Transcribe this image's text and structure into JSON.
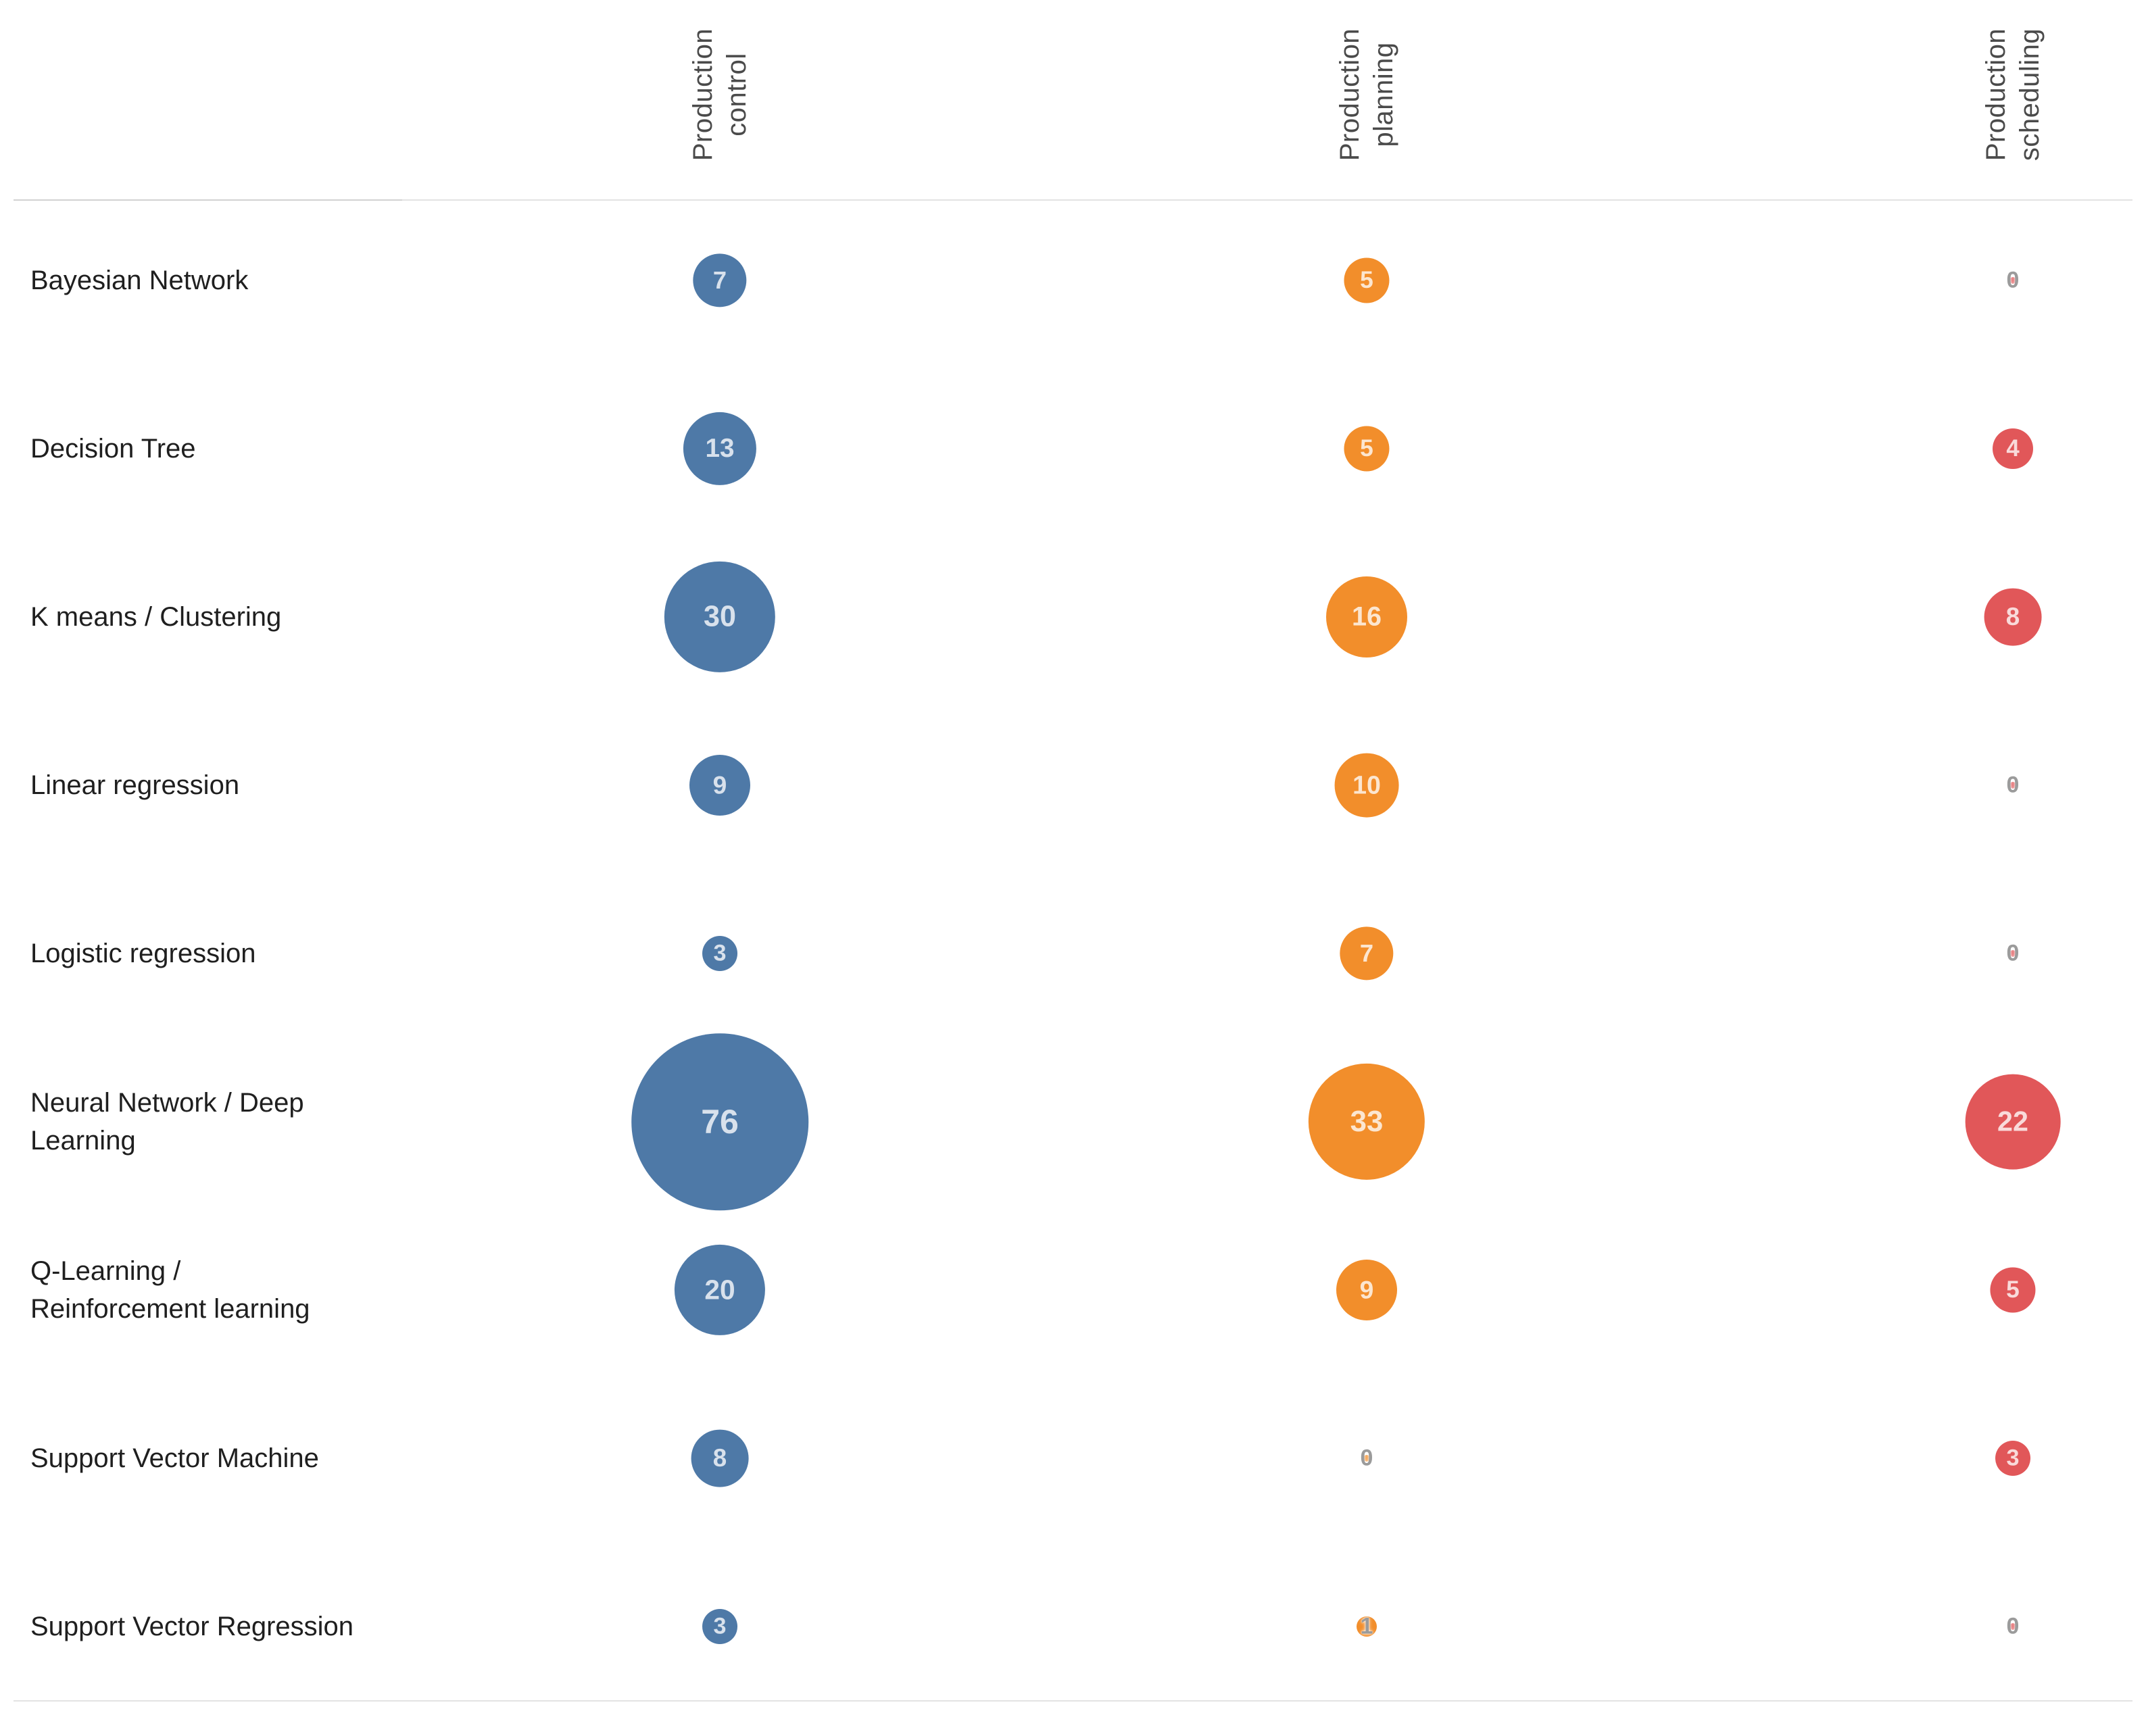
{
  "chart_data": {
    "type": "bubble",
    "title": "",
    "subtitle": "",
    "description": "Bubble matrix of machine-learning methods vs production task, bubble area proportional to count",
    "size_encoding": "area proportional to value",
    "grid": false,
    "legend_position": "none",
    "value_label_color_inside": "rgba(255,255,255,0.78)",
    "value_label_color_small": "#9b9b9b",
    "columns": [
      {
        "label": "Production\ncontrol",
        "color": "#4e79a7"
      },
      {
        "label": "Production\nplanning",
        "color": "#f28e2b"
      },
      {
        "label": "Production\nscheduling",
        "color": "#e15759"
      }
    ],
    "rows": [
      {
        "label": "Bayesian Network",
        "values": [
          7,
          5,
          0
        ]
      },
      {
        "label": "Decision Tree",
        "values": [
          13,
          5,
          4
        ]
      },
      {
        "label": "K means / Clustering",
        "values": [
          30,
          16,
          8
        ]
      },
      {
        "label": "Linear regression",
        "values": [
          9,
          10,
          0
        ]
      },
      {
        "label": "Logistic regression",
        "values": [
          3,
          7,
          0
        ]
      },
      {
        "label": "Neural Network / Deep\nLearning",
        "values": [
          76,
          33,
          22
        ]
      },
      {
        "label": "Q-Learning /\nReinforcement learning",
        "values": [
          20,
          9,
          5
        ]
      },
      {
        "label": "Support Vector Machine",
        "values": [
          8,
          0,
          3
        ]
      },
      {
        "label": "Support Vector Regression",
        "values": [
          3,
          1,
          0
        ]
      }
    ]
  }
}
